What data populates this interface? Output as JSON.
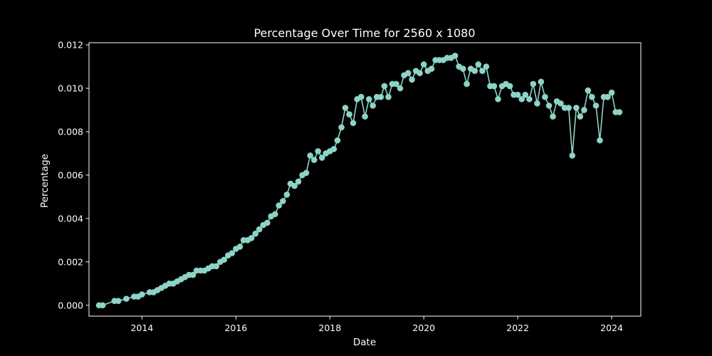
{
  "chart_data": {
    "type": "line",
    "title": "Percentage Over Time for 2560 x 1080",
    "xlabel": "Date",
    "ylabel": "Percentage",
    "x_ticks": [
      "2014",
      "2016",
      "2018",
      "2020",
      "2022",
      "2024"
    ],
    "y_ticks": [
      "0.000",
      "0.002",
      "0.004",
      "0.006",
      "0.008",
      "0.010",
      "0.012"
    ],
    "xlim": [
      "2012-11-15",
      "2024-08-15"
    ],
    "ylim": [
      -0.0005,
      0.0121
    ],
    "grid": false,
    "legend": "none",
    "colors": {
      "background": "#000000",
      "series": "#8dd3c7",
      "text": "#ffffff",
      "axes": "#ffffff"
    },
    "series": [
      {
        "marker": "circle",
        "x": [
          "2013-02-01",
          "2013-03-01",
          "2013-06-01",
          "2013-07-01",
          "2013-09-01",
          "2013-11-01",
          "2013-12-01",
          "2014-01-01",
          "2014-03-01",
          "2014-04-01",
          "2014-05-01",
          "2014-06-01",
          "2014-07-01",
          "2014-08-01",
          "2014-09-01",
          "2014-10-01",
          "2014-11-01",
          "2014-12-01",
          "2015-01-01",
          "2015-02-01",
          "2015-03-01",
          "2015-04-01",
          "2015-05-01",
          "2015-06-01",
          "2015-07-01",
          "2015-08-01",
          "2015-09-01",
          "2015-10-01",
          "2015-11-01",
          "2015-12-01",
          "2016-01-01",
          "2016-02-01",
          "2016-03-01",
          "2016-04-01",
          "2016-05-01",
          "2016-06-01",
          "2016-07-01",
          "2016-08-01",
          "2016-09-01",
          "2016-10-01",
          "2016-11-01",
          "2016-12-01",
          "2017-01-01",
          "2017-02-01",
          "2017-03-01",
          "2017-04-01",
          "2017-05-01",
          "2017-06-01",
          "2017-07-01",
          "2017-08-01",
          "2017-09-01",
          "2017-10-01",
          "2017-11-01",
          "2017-12-01",
          "2018-01-01",
          "2018-02-01",
          "2018-03-01",
          "2018-04-01",
          "2018-05-01",
          "2018-06-01",
          "2018-07-01",
          "2018-08-01",
          "2018-09-01",
          "2018-10-01",
          "2018-11-01",
          "2018-12-01",
          "2019-01-01",
          "2019-02-01",
          "2019-03-01",
          "2019-04-01",
          "2019-05-01",
          "2019-06-01",
          "2019-07-01",
          "2019-08-01",
          "2019-09-01",
          "2019-10-01",
          "2019-11-01",
          "2019-12-01",
          "2020-01-01",
          "2020-02-01",
          "2020-03-01",
          "2020-04-01",
          "2020-05-01",
          "2020-06-01",
          "2020-07-01",
          "2020-08-01",
          "2020-09-01",
          "2020-10-01",
          "2020-11-01",
          "2020-12-01",
          "2021-01-01",
          "2021-02-01",
          "2021-03-01",
          "2021-04-01",
          "2021-05-01",
          "2021-06-01",
          "2021-07-01",
          "2021-08-01",
          "2021-09-01",
          "2021-10-01",
          "2021-11-01",
          "2021-12-01",
          "2022-01-01",
          "2022-02-01",
          "2022-03-01",
          "2022-04-01",
          "2022-05-01",
          "2022-06-01",
          "2022-07-01",
          "2022-08-01",
          "2022-09-01",
          "2022-10-01",
          "2022-11-01",
          "2022-12-01",
          "2023-01-01",
          "2023-02-01",
          "2023-03-01",
          "2023-04-01",
          "2023-05-01",
          "2023-06-01",
          "2023-07-01",
          "2023-08-01",
          "2023-09-01",
          "2023-10-01",
          "2023-11-01",
          "2023-12-01",
          "2024-01-01",
          "2024-02-01",
          "2024-03-01"
        ],
        "y": [
          0.0,
          0.0,
          0.0002,
          0.0002,
          0.0003,
          0.0004,
          0.0004,
          0.0005,
          0.0006,
          0.0006,
          0.0007,
          0.0008,
          0.0009,
          0.001,
          0.001,
          0.0011,
          0.0012,
          0.0013,
          0.0014,
          0.0014,
          0.0016,
          0.0016,
          0.0016,
          0.0017,
          0.0018,
          0.0018,
          0.002,
          0.0021,
          0.0023,
          0.0024,
          0.0026,
          0.0027,
          0.003,
          0.003,
          0.0031,
          0.0033,
          0.0035,
          0.0037,
          0.0038,
          0.0041,
          0.0042,
          0.0046,
          0.0048,
          0.0051,
          0.0056,
          0.0055,
          0.0057,
          0.006,
          0.0061,
          0.0069,
          0.0067,
          0.0071,
          0.0068,
          0.007,
          0.0071,
          0.0072,
          0.0076,
          0.0082,
          0.0091,
          0.0088,
          0.0084,
          0.0095,
          0.0096,
          0.0087,
          0.0095,
          0.0092,
          0.0096,
          0.0096,
          0.0101,
          0.0096,
          0.0102,
          0.0102,
          0.01,
          0.0106,
          0.0107,
          0.0104,
          0.0108,
          0.0107,
          0.0111,
          0.0108,
          0.0109,
          0.0113,
          0.0113,
          0.0113,
          0.0114,
          0.0114,
          0.0115,
          0.011,
          0.0109,
          0.0102,
          0.0109,
          0.0108,
          0.0111,
          0.0108,
          0.011,
          0.0101,
          0.0101,
          0.0095,
          0.0101,
          0.0102,
          0.0101,
          0.0097,
          0.0097,
          0.0095,
          0.0097,
          0.0095,
          0.0102,
          0.0093,
          0.0103,
          0.0096,
          0.0092,
          0.0087,
          0.0094,
          0.0093,
          0.0091,
          0.0091,
          0.0069,
          0.0091,
          0.0087,
          0.009,
          0.0099,
          0.0096,
          0.0092,
          0.0076,
          0.0096,
          0.0096,
          0.0098,
          0.0089,
          0.0089
        ]
      }
    ]
  }
}
